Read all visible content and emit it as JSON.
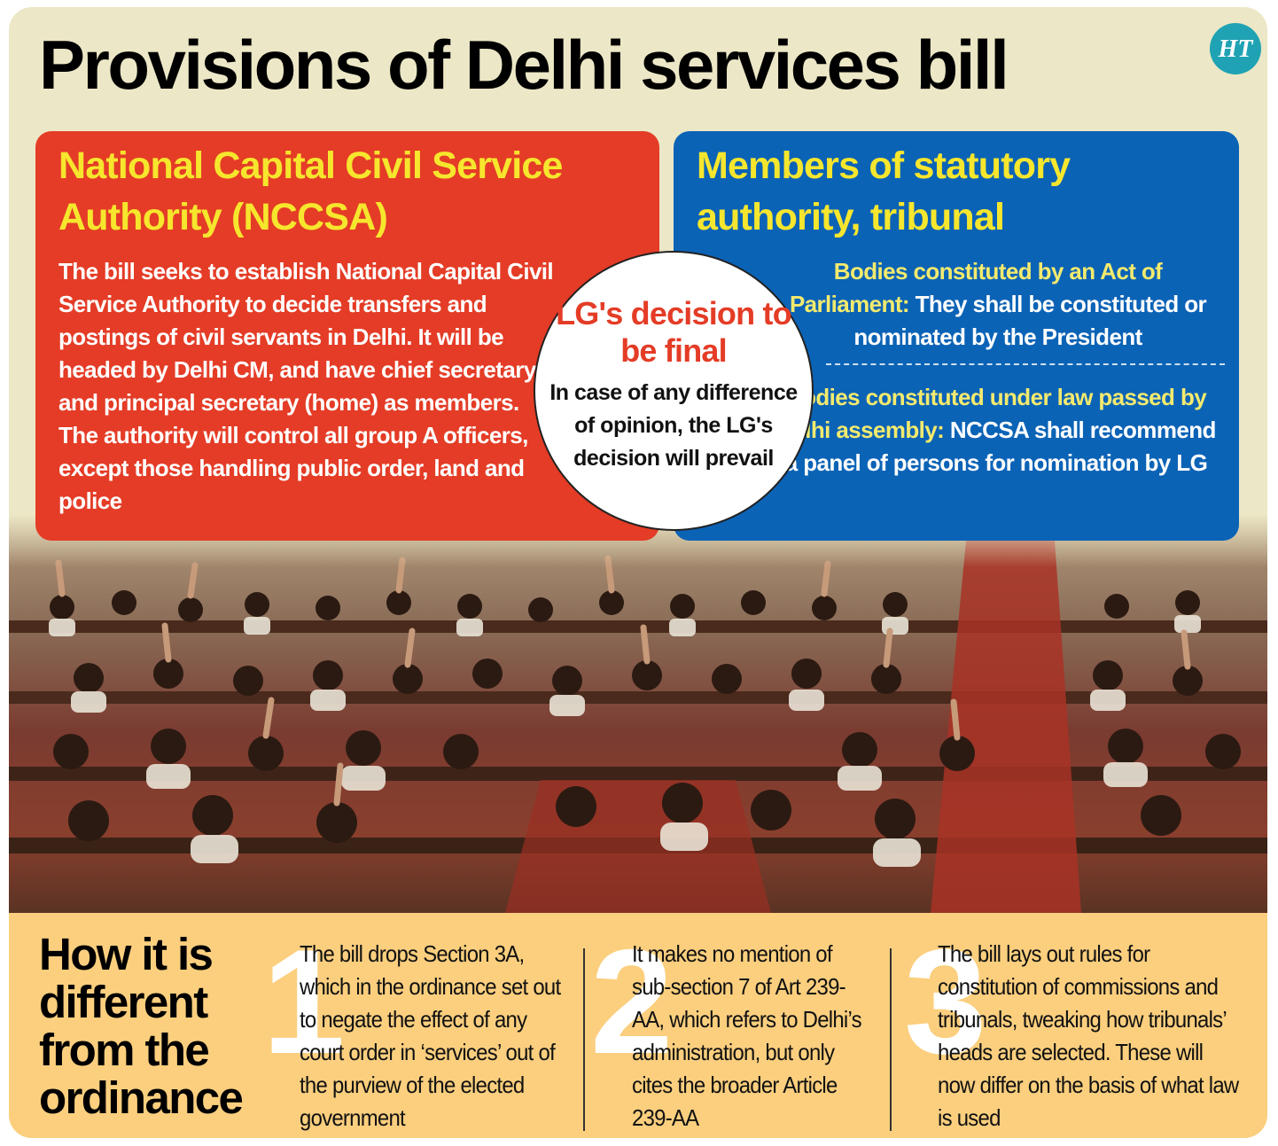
{
  "title": "Provisions of Delhi services bill",
  "logo": {
    "text": "HT",
    "color": "#1fa3b4"
  },
  "colors": {
    "background": "#ece7c6",
    "left_panel": "#e43c26",
    "right_panel": "#0b63b6",
    "heading_yellow": "#f6e62d",
    "bottom_band": "#fbcf7e"
  },
  "left_panel": {
    "heading": "National Capital Civil Service Authority (NCCSA)",
    "body": "The bill seeks to establish National Capital Civil Service Authority to decide transfers and postings of civil servants in Delhi. It will be headed by Delhi CM, and have chief secretary and principal secretary (home) as members. The authority will control all group A officers, except those handling public order, land and police"
  },
  "right_panel": {
    "heading": "Members of statutory authority, tribunal",
    "items": [
      {
        "lead": "Bodies constituted by an Act of Parliament:",
        "text": "They shall be constituted or nominated by the President"
      },
      {
        "lead": "Bodies constituted under law passed by Delhi assembly:",
        "text": "NCCSA shall recommend a panel of persons for nomination by LG"
      }
    ]
  },
  "circle": {
    "heading": "LG's decision to be final",
    "text": "In case of any difference of opinion, the LG's decision will prevail"
  },
  "photo": {
    "description_icon": "parliament-photo"
  },
  "bottom": {
    "heading": "How it is different from the ordinance",
    "points": [
      {
        "number": "1",
        "text": "The bill drops Section 3A, which in the ordinance set out to negate the effect of any court order in ‘services’ out of the purview of the elected government"
      },
      {
        "number": "2",
        "text": "It makes no mention of sub-section 7 of Art 239-AA, which refers to Delhi’s administration, but only cites the broader Article 239-AA"
      },
      {
        "number": "3",
        "text": "The bill lays out rules for constitution of commissions and tribunals, tweaking how tribunals’ heads are selected. These will now differ on the basis of what law is used"
      }
    ]
  }
}
